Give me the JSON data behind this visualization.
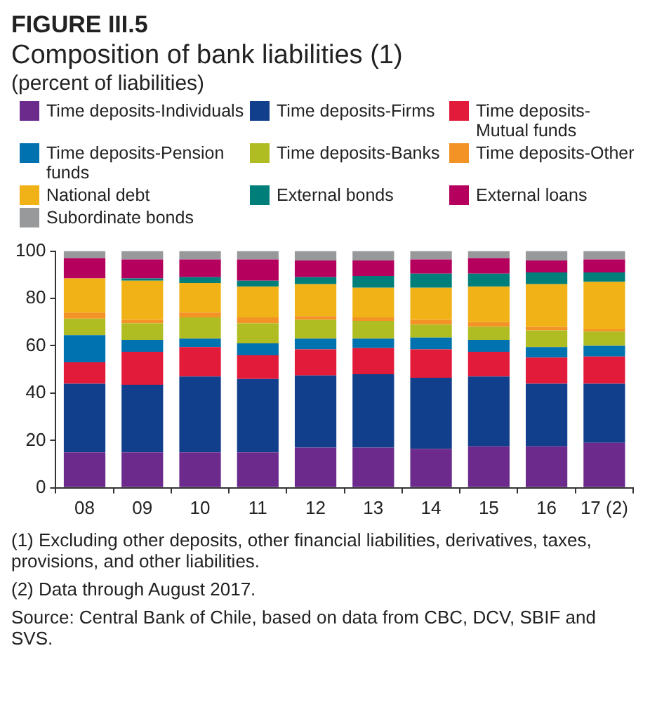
{
  "chart_data": {
    "type": "bar",
    "title": "FIGURE III.5",
    "subtitle": "Composition of bank liabilities (1)",
    "categories": [
      "08",
      "09",
      "10",
      "11",
      "12",
      "13",
      "14",
      "15",
      "16",
      "17 (2)"
    ],
    "stacked": true,
    "legend": "top",
    "ylim": [
      0,
      100
    ],
    "yticks": [
      0,
      20,
      40,
      60,
      80,
      100
    ],
    "series": [
      {
        "name": "Time deposits-Individuals",
        "color": "#6b2a8c",
        "values": [
          15,
          15,
          15,
          15,
          17,
          17,
          16.5,
          17.5,
          17.5,
          19
        ]
      },
      {
        "name": "Time deposits-Firms",
        "color": "#123f8c",
        "values": [
          29,
          28.5,
          32,
          31,
          30.5,
          31,
          30,
          29.5,
          26.5,
          25
        ]
      },
      {
        "name": "Time deposits-Mutual funds",
        "color": "#e31b3b",
        "values": [
          9,
          14,
          12.5,
          10,
          11,
          11,
          12,
          10.5,
          11,
          11.5
        ]
      },
      {
        "name": "Time deposits-Pension funds",
        "color": "#0072b0",
        "values": [
          11.5,
          5,
          3.5,
          5,
          4.5,
          4,
          5,
          5,
          4.5,
          4.5
        ]
      },
      {
        "name": "Time deposits-Banks",
        "color": "#b0bd22",
        "values": [
          7,
          7,
          9,
          8.5,
          8,
          7.5,
          5.5,
          5.5,
          7,
          6
        ]
      },
      {
        "name": "Time deposits-Other",
        "color": "#f39325",
        "values": [
          2.5,
          1.5,
          2,
          2.5,
          1.5,
          1.5,
          2,
          2,
          1.5,
          1
        ]
      },
      {
        "name": "National debt",
        "color": "#f0b217",
        "values": [
          14.5,
          16.5,
          12.5,
          13,
          13.5,
          12.5,
          13.5,
          15,
          18,
          20
        ]
      },
      {
        "name": "External bonds",
        "color": "#007f7a",
        "values": [
          0,
          1,
          2.5,
          2.5,
          3,
          5,
          6,
          5.5,
          5,
          4
        ]
      },
      {
        "name": "External loans",
        "color": "#b5005e",
        "values": [
          8.5,
          8,
          7.5,
          9,
          7,
          6.5,
          6,
          6.5,
          5,
          5.5
        ]
      },
      {
        "name": "Subordinate bonds",
        "color": "#97999b",
        "values": [
          3,
          3.5,
          3.5,
          3.5,
          4,
          4,
          3.5,
          3,
          4,
          3.5
        ]
      }
    ],
    "annotations": [
      "(percent of liabilities)",
      "(1) Excluding other deposits, other financial liabilities, derivatives, taxes, provisions, and other liabilities.",
      "(2) Data through August 2017.",
      "Source: Central Bank of Chile, based on data from CBC, DCV, SBIF and SVS."
    ]
  }
}
